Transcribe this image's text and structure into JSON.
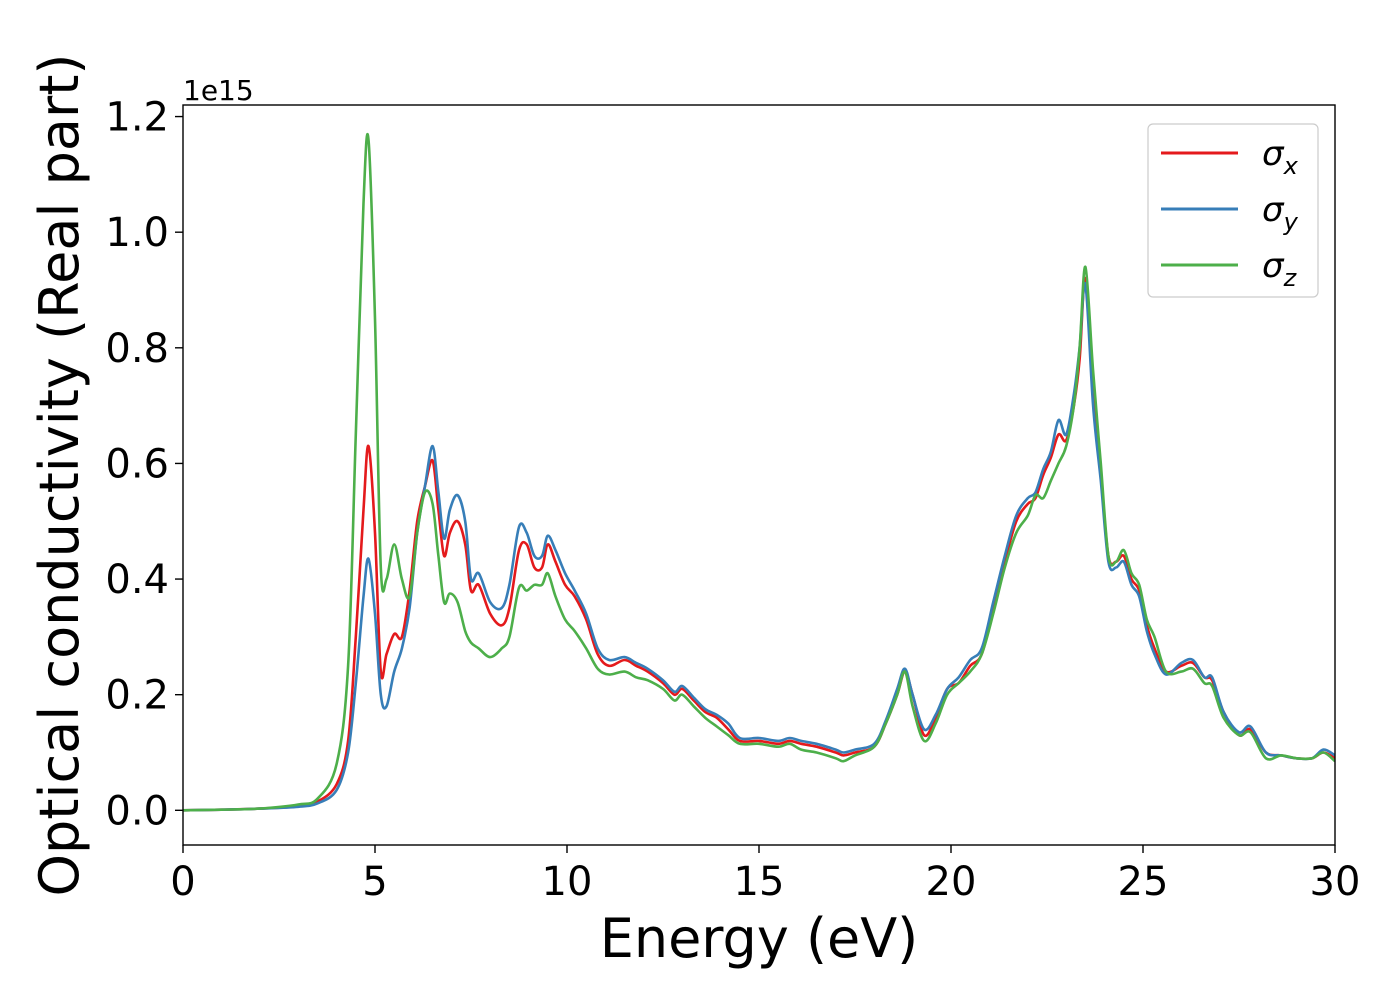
{
  "chart_data": {
    "type": "line",
    "xlabel": "Energy (eV)",
    "ylabel": "Optical conductivity (Real part)",
    "y_offset_text": "1e15",
    "xlim": [
      0,
      30
    ],
    "ylim": [
      -0.06,
      1.22
    ],
    "x_ticks": [
      0,
      5,
      10,
      15,
      20,
      25,
      30
    ],
    "x_tick_labels": [
      "0",
      "5",
      "10",
      "15",
      "20",
      "25",
      "30"
    ],
    "y_ticks": [
      0.0,
      0.2,
      0.4,
      0.6,
      0.8,
      1.0,
      1.2
    ],
    "y_tick_labels": [
      "0.0",
      "0.2",
      "0.4",
      "0.6",
      "0.8",
      "1.0",
      "1.2"
    ],
    "grid": false,
    "legend": {
      "placement": "top-right"
    },
    "series": [
      {
        "name": "σx",
        "symbol": "σ",
        "subscript": "x",
        "color": "#e41a1c",
        "x": [
          0,
          1,
          2,
          3,
          3.5,
          4,
          4.3,
          4.5,
          4.7,
          4.83,
          5.0,
          5.15,
          5.3,
          5.5,
          5.7,
          5.9,
          6.1,
          6.3,
          6.5,
          6.65,
          6.8,
          6.95,
          7.15,
          7.35,
          7.5,
          7.7,
          8.0,
          8.3,
          8.5,
          8.75,
          8.95,
          9.15,
          9.35,
          9.5,
          9.7,
          9.95,
          10.2,
          10.5,
          10.8,
          11.1,
          11.5,
          11.8,
          12.1,
          12.5,
          12.8,
          13.0,
          13.3,
          13.6,
          13.9,
          14.2,
          14.5,
          15.0,
          15.5,
          15.8,
          16.1,
          16.5,
          17.0,
          17.2,
          17.5,
          18.0,
          18.3,
          18.6,
          18.8,
          19.0,
          19.3,
          19.6,
          19.9,
          20.2,
          20.5,
          20.8,
          21.1,
          21.4,
          21.7,
          22.0,
          22.2,
          22.4,
          22.6,
          22.8,
          23.0,
          23.2,
          23.35,
          23.5,
          23.7,
          23.9,
          24.1,
          24.3,
          24.5,
          24.7,
          24.9,
          25.1,
          25.3,
          25.6,
          26.0,
          26.3,
          26.6,
          26.8,
          27.1,
          27.5,
          27.8,
          28.2,
          28.6,
          29.0,
          29.4,
          29.7,
          30.0
        ],
        "values": [
          0,
          0.001,
          0.003,
          0.007,
          0.015,
          0.045,
          0.12,
          0.3,
          0.52,
          0.63,
          0.48,
          0.24,
          0.27,
          0.305,
          0.3,
          0.38,
          0.5,
          0.56,
          0.605,
          0.52,
          0.44,
          0.48,
          0.5,
          0.46,
          0.38,
          0.39,
          0.34,
          0.32,
          0.35,
          0.45,
          0.46,
          0.42,
          0.42,
          0.46,
          0.43,
          0.39,
          0.37,
          0.33,
          0.27,
          0.25,
          0.26,
          0.25,
          0.24,
          0.22,
          0.2,
          0.21,
          0.19,
          0.17,
          0.16,
          0.14,
          0.12,
          0.12,
          0.115,
          0.12,
          0.115,
          0.11,
          0.1,
          0.095,
          0.1,
          0.11,
          0.15,
          0.2,
          0.24,
          0.2,
          0.13,
          0.16,
          0.21,
          0.22,
          0.25,
          0.27,
          0.35,
          0.43,
          0.5,
          0.53,
          0.54,
          0.58,
          0.61,
          0.65,
          0.64,
          0.7,
          0.78,
          0.92,
          0.72,
          0.58,
          0.44,
          0.43,
          0.44,
          0.4,
          0.38,
          0.32,
          0.28,
          0.24,
          0.25,
          0.255,
          0.23,
          0.225,
          0.17,
          0.13,
          0.14,
          0.1,
          0.095,
          0.09,
          0.09,
          0.1,
          0.09
        ]
      },
      {
        "name": "σy",
        "symbol": "σ",
        "subscript": "y",
        "color": "#377eb8",
        "x": [
          0,
          1,
          2,
          3,
          3.5,
          4,
          4.3,
          4.5,
          4.7,
          4.83,
          5.0,
          5.15,
          5.3,
          5.5,
          5.7,
          5.9,
          6.1,
          6.3,
          6.5,
          6.65,
          6.8,
          6.95,
          7.15,
          7.35,
          7.5,
          7.7,
          8.0,
          8.3,
          8.5,
          8.75,
          8.95,
          9.15,
          9.35,
          9.5,
          9.7,
          9.95,
          10.2,
          10.5,
          10.8,
          11.1,
          11.5,
          11.8,
          12.1,
          12.5,
          12.8,
          13.0,
          13.3,
          13.6,
          13.9,
          14.2,
          14.5,
          15.0,
          15.5,
          15.8,
          16.1,
          16.5,
          17.0,
          17.2,
          17.5,
          18.0,
          18.3,
          18.6,
          18.8,
          19.0,
          19.3,
          19.6,
          19.9,
          20.2,
          20.5,
          20.8,
          21.1,
          21.4,
          21.7,
          22.0,
          22.2,
          22.4,
          22.6,
          22.8,
          23.0,
          23.2,
          23.35,
          23.5,
          23.7,
          23.9,
          24.1,
          24.3,
          24.5,
          24.7,
          24.9,
          25.1,
          25.3,
          25.6,
          26.0,
          26.3,
          26.6,
          26.8,
          27.1,
          27.5,
          27.8,
          28.2,
          28.6,
          29.0,
          29.4,
          29.7,
          30.0
        ],
        "values": [
          0,
          0.001,
          0.003,
          0.006,
          0.012,
          0.035,
          0.1,
          0.22,
          0.37,
          0.435,
          0.34,
          0.2,
          0.18,
          0.24,
          0.28,
          0.35,
          0.48,
          0.56,
          0.63,
          0.55,
          0.47,
          0.52,
          0.545,
          0.5,
          0.4,
          0.41,
          0.36,
          0.35,
          0.39,
          0.49,
          0.48,
          0.44,
          0.44,
          0.475,
          0.45,
          0.41,
          0.38,
          0.34,
          0.28,
          0.26,
          0.265,
          0.255,
          0.245,
          0.225,
          0.205,
          0.215,
          0.195,
          0.175,
          0.165,
          0.15,
          0.125,
          0.125,
          0.12,
          0.125,
          0.12,
          0.115,
          0.105,
          0.1,
          0.105,
          0.115,
          0.155,
          0.21,
          0.245,
          0.2,
          0.14,
          0.165,
          0.21,
          0.23,
          0.26,
          0.28,
          0.36,
          0.44,
          0.51,
          0.54,
          0.55,
          0.59,
          0.62,
          0.675,
          0.65,
          0.72,
          0.8,
          0.91,
          0.7,
          0.57,
          0.43,
          0.42,
          0.43,
          0.39,
          0.37,
          0.31,
          0.27,
          0.235,
          0.255,
          0.26,
          0.23,
          0.23,
          0.17,
          0.135,
          0.145,
          0.1,
          0.095,
          0.09,
          0.09,
          0.105,
          0.095
        ]
      },
      {
        "name": "σz",
        "symbol": "σ",
        "subscript": "z",
        "color": "#4daf4a",
        "x": [
          0,
          1,
          2,
          3,
          3.5,
          4,
          4.3,
          4.5,
          4.7,
          4.83,
          5.0,
          5.15,
          5.3,
          5.5,
          5.7,
          5.9,
          6.1,
          6.3,
          6.5,
          6.65,
          6.8,
          6.95,
          7.15,
          7.35,
          7.5,
          7.7,
          8.0,
          8.3,
          8.5,
          8.75,
          8.95,
          9.15,
          9.35,
          9.5,
          9.7,
          9.95,
          10.2,
          10.5,
          10.8,
          11.1,
          11.5,
          11.8,
          12.1,
          12.5,
          12.8,
          13.0,
          13.3,
          13.6,
          13.9,
          14.2,
          14.5,
          15.0,
          15.5,
          15.8,
          16.1,
          16.5,
          17.0,
          17.2,
          17.5,
          18.0,
          18.3,
          18.6,
          18.8,
          19.0,
          19.3,
          19.6,
          19.9,
          20.2,
          20.5,
          20.8,
          21.1,
          21.4,
          21.7,
          22.0,
          22.2,
          22.4,
          22.6,
          22.8,
          23.0,
          23.2,
          23.35,
          23.5,
          23.7,
          23.9,
          24.1,
          24.3,
          24.5,
          24.7,
          24.9,
          25.1,
          25.3,
          25.6,
          26.0,
          26.3,
          26.6,
          26.8,
          27.1,
          27.5,
          27.8,
          28.2,
          28.6,
          29.0,
          29.4,
          29.7,
          30.0
        ],
        "values": [
          0,
          0.001,
          0.003,
          0.01,
          0.02,
          0.08,
          0.25,
          0.65,
          1.05,
          1.16,
          0.85,
          0.42,
          0.4,
          0.46,
          0.4,
          0.37,
          0.48,
          0.55,
          0.53,
          0.44,
          0.36,
          0.375,
          0.36,
          0.31,
          0.29,
          0.28,
          0.265,
          0.28,
          0.3,
          0.385,
          0.38,
          0.39,
          0.39,
          0.41,
          0.37,
          0.33,
          0.31,
          0.28,
          0.245,
          0.235,
          0.24,
          0.23,
          0.225,
          0.21,
          0.19,
          0.2,
          0.18,
          0.16,
          0.145,
          0.13,
          0.115,
          0.115,
          0.11,
          0.115,
          0.105,
          0.1,
          0.09,
          0.085,
          0.095,
          0.11,
          0.15,
          0.2,
          0.24,
          0.18,
          0.12,
          0.15,
          0.2,
          0.22,
          0.24,
          0.27,
          0.34,
          0.42,
          0.48,
          0.51,
          0.545,
          0.54,
          0.57,
          0.6,
          0.63,
          0.7,
          0.8,
          0.94,
          0.76,
          0.6,
          0.44,
          0.43,
          0.45,
          0.41,
          0.39,
          0.33,
          0.3,
          0.24,
          0.24,
          0.245,
          0.22,
          0.215,
          0.16,
          0.13,
          0.135,
          0.09,
          0.095,
          0.09,
          0.09,
          0.1,
          0.085
        ]
      }
    ]
  }
}
